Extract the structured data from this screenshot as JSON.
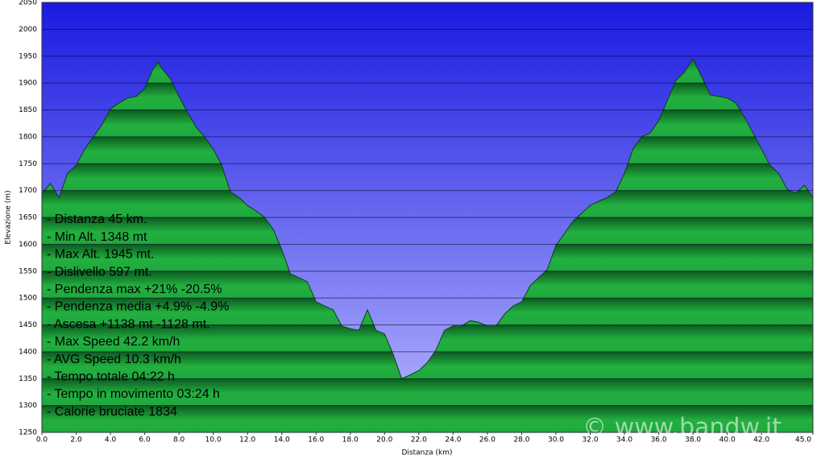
{
  "chart_data": {
    "type": "area",
    "x_label": "Distanza  (km)",
    "y_label": "Elevazione (m)",
    "x": [
      0,
      0.5,
      1,
      1.5,
      2,
      2.5,
      3,
      3.5,
      4,
      4.5,
      5,
      5.5,
      6,
      6.5,
      6.8,
      7,
      7.5,
      8,
      8.5,
      9,
      9.5,
      10,
      10.5,
      11,
      11.5,
      12,
      12.5,
      13,
      13.5,
      14,
      14.5,
      15,
      15.5,
      16,
      16.5,
      17,
      17.5,
      18,
      18.5,
      19,
      19.5,
      20,
      20.5,
      21,
      21.5,
      22,
      22.5,
      23,
      23.5,
      24,
      24.5,
      25,
      25.5,
      26,
      26.5,
      27,
      27.5,
      28,
      28.5,
      29,
      29.5,
      30,
      30.5,
      31,
      31.5,
      32,
      32.5,
      33,
      33.5,
      34,
      34.5,
      35,
      35.5,
      36,
      36.5,
      37,
      37.5,
      38,
      38.5,
      39,
      39.5,
      40,
      40.5,
      41,
      41.5,
      42,
      42.5,
      43,
      43.5,
      44,
      44.5,
      45
    ],
    "values": [
      1695,
      1713,
      1687,
      1732,
      1747,
      1777,
      1800,
      1822,
      1852,
      1863,
      1872,
      1875,
      1890,
      1927,
      1939,
      1927,
      1908,
      1875,
      1845,
      1818,
      1800,
      1777,
      1747,
      1698,
      1687,
      1672,
      1662,
      1650,
      1628,
      1590,
      1545,
      1538,
      1530,
      1493,
      1485,
      1478,
      1448,
      1443,
      1440,
      1478,
      1440,
      1433,
      1395,
      1350,
      1357,
      1365,
      1380,
      1403,
      1440,
      1448,
      1448,
      1458,
      1455,
      1448,
      1448,
      1470,
      1485,
      1493,
      1523,
      1538,
      1553,
      1598,
      1620,
      1643,
      1658,
      1672,
      1680,
      1687,
      1698,
      1732,
      1777,
      1800,
      1807,
      1830,
      1867,
      1905,
      1920,
      1945,
      1912,
      1878,
      1875,
      1872,
      1863,
      1837,
      1807,
      1777,
      1747,
      1732,
      1702,
      1695,
      1710,
      1687
    ],
    "color": "#1fa83c",
    "background_color": "#1a1ae0",
    "xlim": [
      0,
      45
    ],
    "xticks": [
      {
        "value": 0,
        "label": "0.0"
      },
      {
        "value": 2,
        "label": "2.0"
      },
      {
        "value": 4,
        "label": "4.0"
      },
      {
        "value": 6,
        "label": "6.0"
      },
      {
        "value": 8,
        "label": "8.0"
      },
      {
        "value": 10,
        "label": "10.0"
      },
      {
        "value": 12,
        "label": "12.0"
      },
      {
        "value": 14,
        "label": "14.0"
      },
      {
        "value": 16,
        "label": "16.0"
      },
      {
        "value": 18,
        "label": "18.0"
      },
      {
        "value": 20,
        "label": "20.0"
      },
      {
        "value": 22,
        "label": "22.0"
      },
      {
        "value": 24,
        "label": "24.0"
      },
      {
        "value": 26,
        "label": "26.0"
      },
      {
        "value": 28,
        "label": "28.0"
      },
      {
        "value": 30,
        "label": "30.0"
      },
      {
        "value": 32,
        "label": "32.0"
      },
      {
        "value": 34,
        "label": "34.0"
      },
      {
        "value": 36,
        "label": "36.0"
      },
      {
        "value": 38,
        "label": "38.0"
      },
      {
        "value": 40,
        "label": "40.0"
      },
      {
        "value": 42,
        "label": "42.0"
      },
      {
        "value": 45,
        "label": "45.0"
      }
    ],
    "ylim": [
      1250,
      2050
    ],
    "yticks": [
      1250,
      1300,
      1350,
      1400,
      1450,
      1500,
      1550,
      1600,
      1650,
      1700,
      1750,
      1800,
      1850,
      1900,
      1950,
      2000,
      2050
    ],
    "grid": true,
    "stats": [
      "- Distanza 45 km.",
      "- Min Alt. 1348 mt",
      "- Max Alt. 1945 mt.",
      "- Dislivello 597 mt.",
      "- Pendenza max +21% -20.5%",
      "- Pendenza media +4.9% -4.9%",
      "- Ascesa +1138 mt -1128 mt.",
      "- Max Speed 42.2 km/h",
      "- AVG Speed 10.3 km/h",
      "- Tempo totale 04:22 h",
      "- Tempo in movimento 03:24 h",
      "- Calorie bruciate 1834"
    ],
    "watermark": "© www.bandw.it"
  }
}
